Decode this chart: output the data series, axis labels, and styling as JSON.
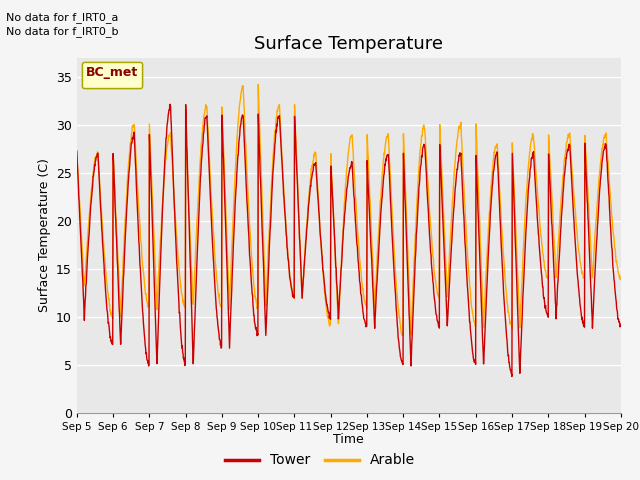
{
  "title": "Surface Temperature",
  "xlabel": "Time",
  "ylabel": "Surface Temperature (C)",
  "ylim": [
    0,
    37
  ],
  "no_data_text_1": "No data for f_IRT0_a",
  "no_data_text_2": "No data for f_IRT0_b",
  "bc_met_label": "BC_met",
  "legend_tower": "Tower",
  "legend_arable": "Arable",
  "line_color_tower": "#cc0000",
  "line_color_arable": "#ffaa00",
  "plot_bg_color": "#e8e8e8",
  "fig_bg_color": "#f5f5f5",
  "x_tick_labels": [
    "Sep 5",
    "Sep 6",
    "Sep 7",
    "Sep 8",
    "Sep 9",
    "Sep 10",
    "Sep 11",
    "Sep 12",
    "Sep 13",
    "Sep 14",
    "Sep 15",
    "Sep 16",
    "Sep 17",
    "Sep 18",
    "Sep 19",
    "Sep 20"
  ],
  "yticks": [
    0,
    5,
    10,
    15,
    20,
    25,
    30,
    35
  ],
  "tower_mins": [
    10,
    7,
    5,
    5,
    7,
    8,
    12,
    10,
    9,
    5,
    9,
    5,
    4,
    10,
    9
  ],
  "tower_maxs": [
    27,
    29,
    32,
    31,
    31,
    31,
    26,
    26,
    27,
    28,
    27,
    27,
    27,
    28,
    28
  ],
  "arable_mins": [
    13,
    10,
    11,
    11,
    11,
    11,
    12,
    9,
    11,
    8,
    12,
    9,
    9,
    14,
    14
  ],
  "arable_maxs": [
    27,
    30,
    29,
    32,
    34,
    32,
    27,
    29,
    29,
    30,
    30,
    28,
    29,
    29,
    29
  ]
}
